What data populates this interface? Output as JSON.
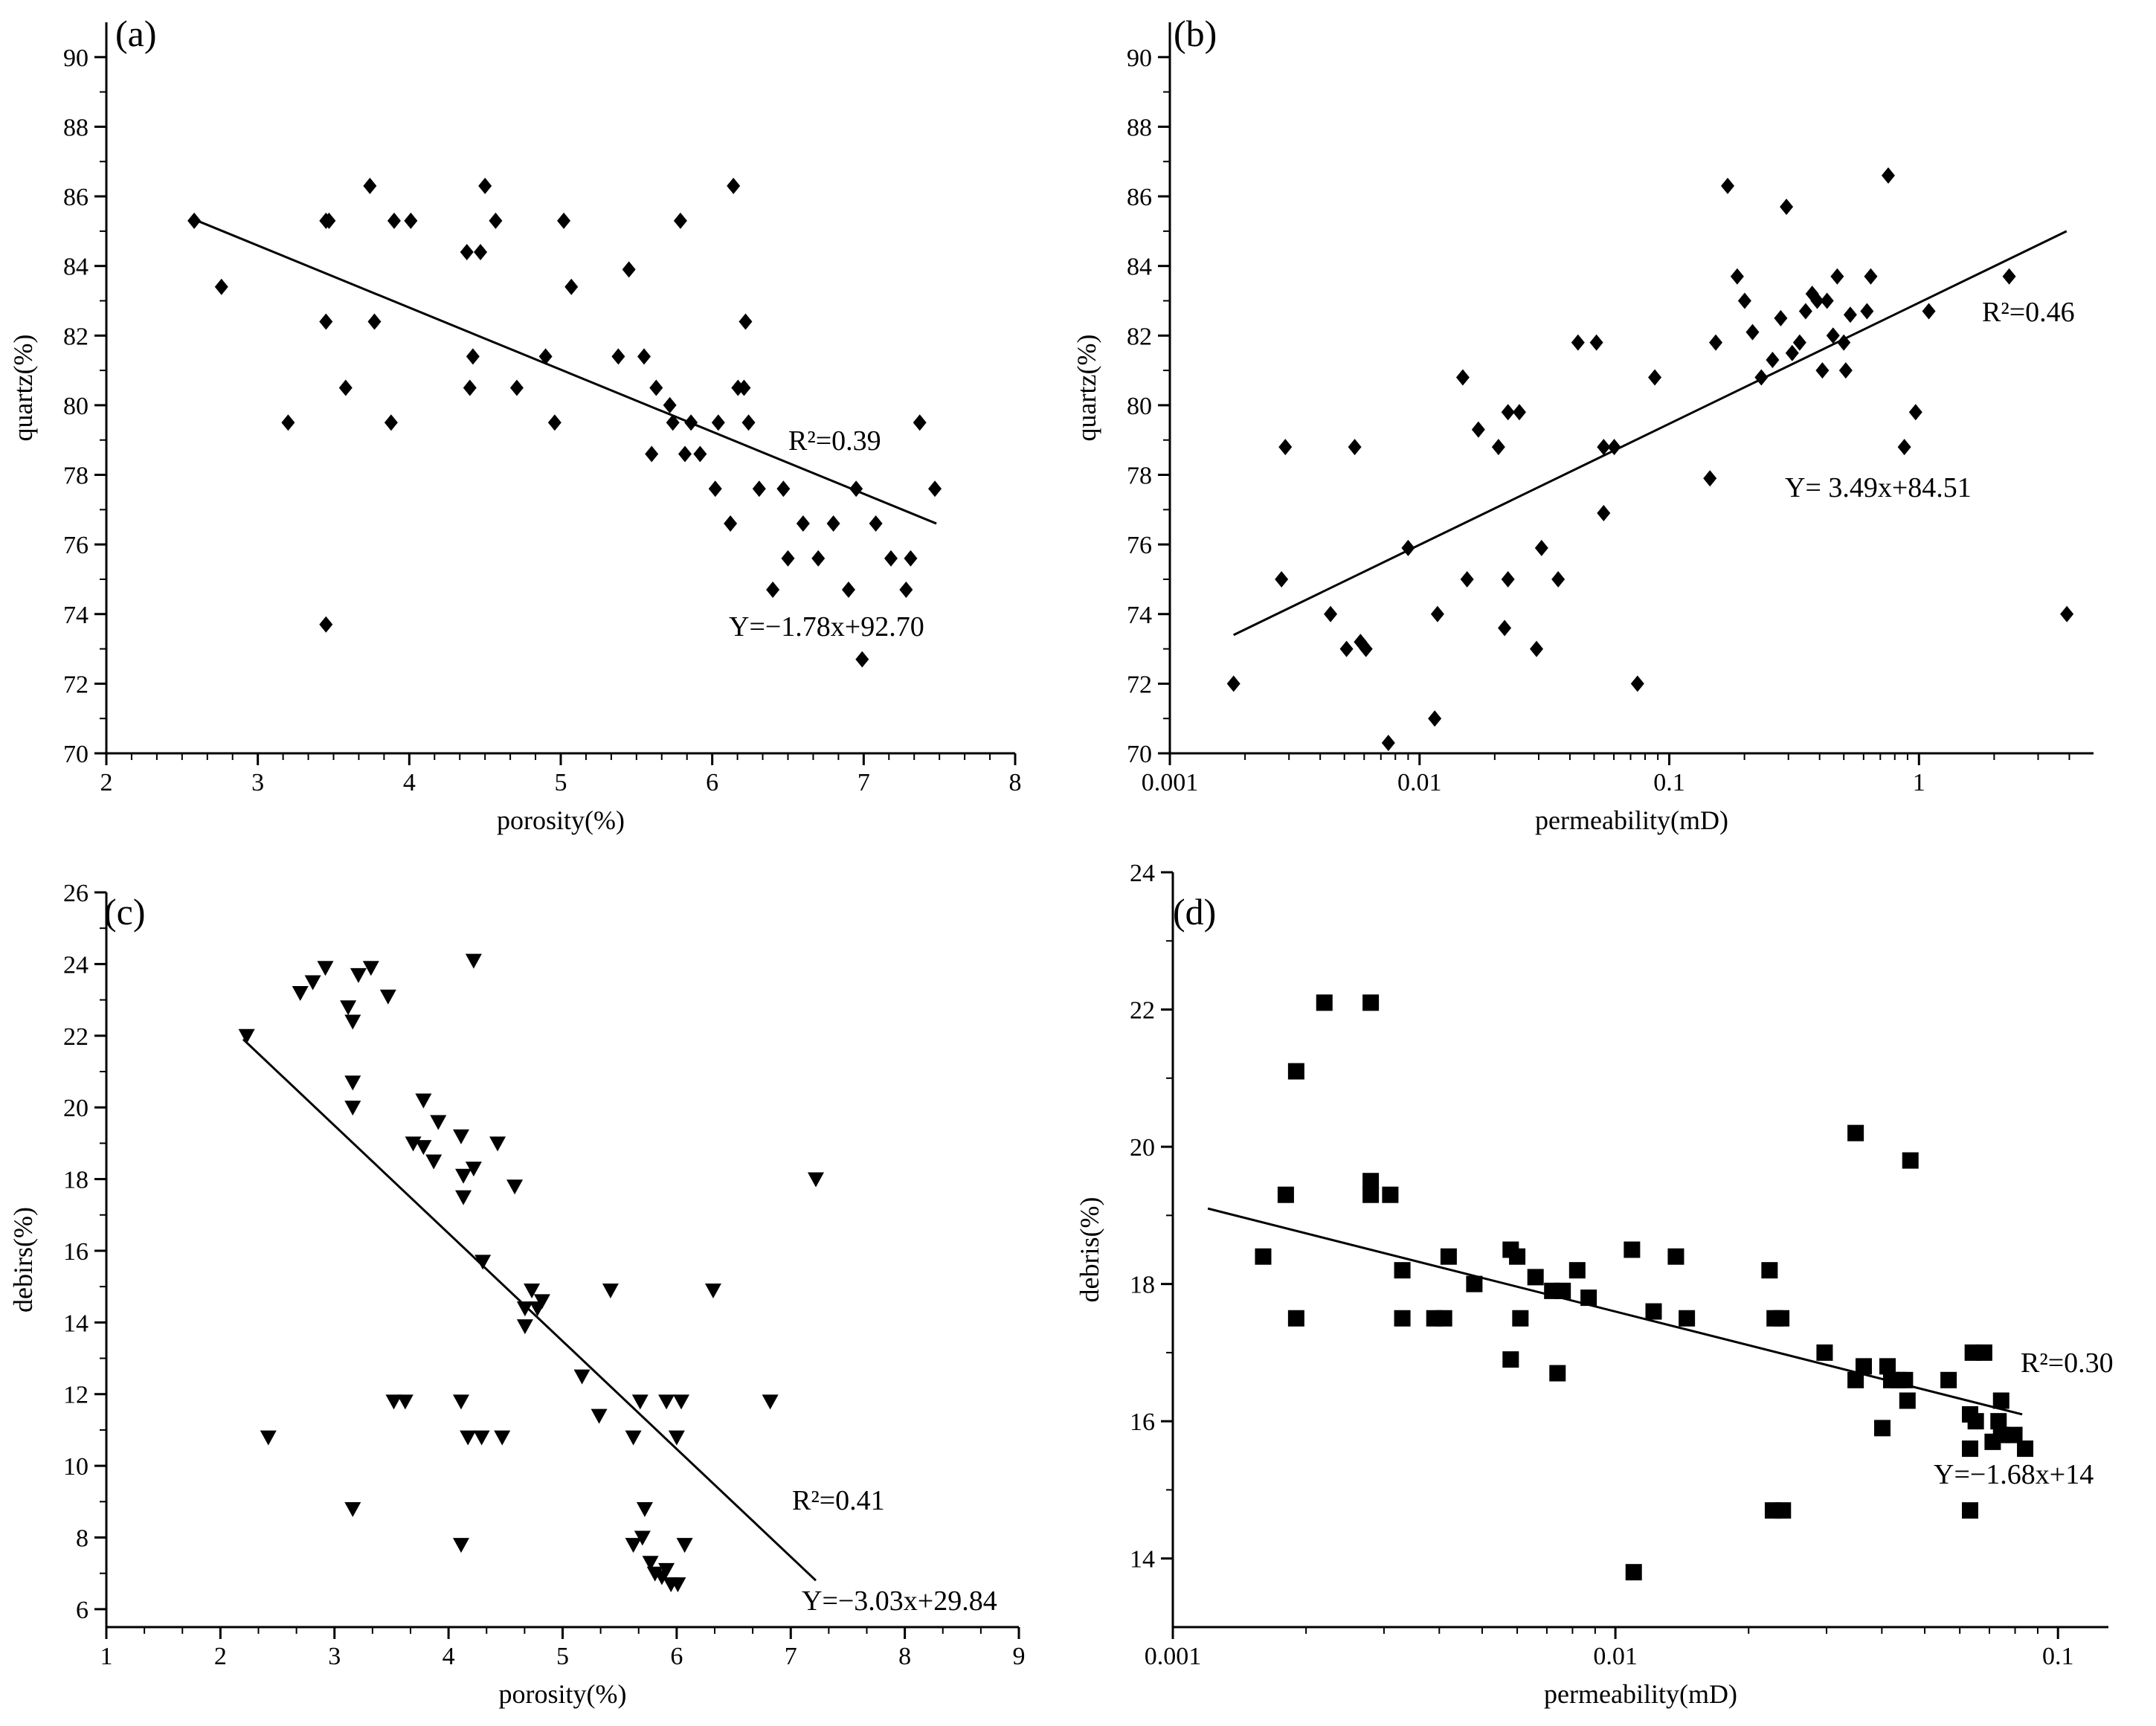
{
  "chart_data": [
    {
      "panel": "(a)",
      "type": "scatter",
      "marker": "diamond",
      "xlabel": "porosity(%)",
      "ylabel": "quartz(%)",
      "xscale": "linear",
      "xlim": [
        2,
        8
      ],
      "ylim": [
        70,
        91
      ],
      "xticks": [
        2,
        3,
        4,
        5,
        6,
        7,
        8
      ],
      "xtick_labels": [
        "2",
        "3",
        "4",
        "5",
        "6",
        "7",
        "8"
      ],
      "yticks": [
        70,
        72,
        74,
        76,
        78,
        80,
        82,
        84,
        86,
        88,
        90
      ],
      "ytick_labels": [
        "70",
        "72",
        "74",
        "76",
        "78",
        "80",
        "82",
        "84",
        "86",
        "88",
        "90"
      ],
      "r2_label": "R²=0.39",
      "equation": "Y=−1.78x+92.70",
      "fit_line": {
        "x": [
          2.6,
          7.48
        ],
        "y": [
          85.3,
          76.6
        ]
      },
      "points": [
        [
          2.58,
          85.3
        ],
        [
          2.76,
          83.4
        ],
        [
          3.2,
          79.5
        ],
        [
          3.45,
          85.3
        ],
        [
          3.47,
          85.3
        ],
        [
          3.45,
          82.4
        ],
        [
          3.45,
          73.7
        ],
        [
          3.58,
          80.5
        ],
        [
          3.74,
          86.3
        ],
        [
          3.77,
          82.4
        ],
        [
          3.88,
          79.5
        ],
        [
          3.9,
          85.3
        ],
        [
          4.01,
          85.3
        ],
        [
          4.38,
          84.4
        ],
        [
          4.4,
          80.5
        ],
        [
          4.42,
          81.4
        ],
        [
          4.47,
          84.4
        ],
        [
          4.5,
          86.3
        ],
        [
          4.57,
          85.3
        ],
        [
          4.71,
          80.5
        ],
        [
          4.9,
          81.4
        ],
        [
          4.96,
          79.5
        ],
        [
          5.02,
          85.3
        ],
        [
          5.07,
          83.4
        ],
        [
          5.38,
          81.4
        ],
        [
          5.45,
          83.9
        ],
        [
          5.55,
          81.4
        ],
        [
          5.6,
          78.6
        ],
        [
          5.63,
          80.5
        ],
        [
          5.72,
          80.0
        ],
        [
          5.74,
          79.5
        ],
        [
          5.79,
          85.3
        ],
        [
          5.82,
          78.6
        ],
        [
          5.86,
          79.5
        ],
        [
          5.92,
          78.6
        ],
        [
          6.02,
          77.6
        ],
        [
          6.04,
          79.5
        ],
        [
          6.12,
          76.6
        ],
        [
          6.14,
          86.3
        ],
        [
          6.17,
          80.5
        ],
        [
          6.21,
          80.5
        ],
        [
          6.22,
          82.4
        ],
        [
          6.24,
          79.5
        ],
        [
          6.31,
          77.6
        ],
        [
          6.4,
          74.7
        ],
        [
          6.47,
          77.6
        ],
        [
          6.5,
          75.6
        ],
        [
          6.6,
          76.6
        ],
        [
          6.7,
          75.6
        ],
        [
          6.8,
          76.6
        ],
        [
          6.9,
          74.7
        ],
        [
          6.95,
          77.6
        ],
        [
          6.99,
          72.7
        ],
        [
          7.08,
          76.6
        ],
        [
          7.18,
          75.6
        ],
        [
          7.28,
          74.7
        ],
        [
          7.31,
          75.6
        ],
        [
          7.37,
          79.5
        ],
        [
          7.47,
          77.6
        ]
      ]
    },
    {
      "panel": "(b)",
      "type": "scatter",
      "marker": "diamond",
      "xlabel": "permeability(mD)",
      "ylabel": "quartz(%)",
      "xscale": "log",
      "xlim": [
        0.001,
        5.0
      ],
      "ylim": [
        70,
        91
      ],
      "xticks": [
        0.001,
        0.01,
        0.1,
        1
      ],
      "xtick_labels": [
        "0.001",
        "0.01",
        "0.1",
        "1"
      ],
      "yticks": [
        70,
        72,
        74,
        76,
        78,
        80,
        82,
        84,
        86,
        88,
        90
      ],
      "ytick_labels": [
        "70",
        "72",
        "74",
        "76",
        "78",
        "80",
        "82",
        "84",
        "86",
        "88",
        "90"
      ],
      "r2_label": "R²=0.46",
      "equation": "Y= 3.49x+84.51",
      "fit_line": {
        "x": [
          0.0018,
          3.9
        ],
        "y": [
          73.4,
          85.0
        ]
      },
      "points": [
        [
          0.0018,
          72.0
        ],
        [
          0.0028,
          75.0
        ],
        [
          0.0029,
          78.8
        ],
        [
          0.0044,
          74.0
        ],
        [
          0.0051,
          73.0
        ],
        [
          0.0055,
          78.8
        ],
        [
          0.0058,
          73.2
        ],
        [
          0.0061,
          73.0
        ],
        [
          0.0075,
          70.3
        ],
        [
          0.009,
          75.9
        ],
        [
          0.0115,
          71.0
        ],
        [
          0.0118,
          74.0
        ],
        [
          0.0149,
          80.8
        ],
        [
          0.0155,
          75.0
        ],
        [
          0.0172,
          79.3
        ],
        [
          0.0207,
          78.8
        ],
        [
          0.0219,
          73.6
        ],
        [
          0.0226,
          79.8
        ],
        [
          0.0226,
          75.0
        ],
        [
          0.0251,
          79.8
        ],
        [
          0.0294,
          73.0
        ],
        [
          0.0308,
          75.9
        ],
        [
          0.0359,
          75.0
        ],
        [
          0.0431,
          81.8
        ],
        [
          0.0511,
          81.8
        ],
        [
          0.0546,
          76.9
        ],
        [
          0.0546,
          78.8
        ],
        [
          0.0602,
          78.8
        ],
        [
          0.0746,
          72.0
        ],
        [
          0.0875,
          80.8
        ],
        [
          0.1455,
          77.9
        ],
        [
          0.1535,
          81.8
        ],
        [
          0.1713,
          86.3
        ],
        [
          0.1871,
          83.7
        ],
        [
          0.2004,
          83.0
        ],
        [
          0.2155,
          82.1
        ],
        [
          0.2337,
          80.8
        ],
        [
          0.2592,
          81.3
        ],
        [
          0.2795,
          82.5
        ],
        [
          0.2946,
          85.7
        ],
        [
          0.3106,
          81.5
        ],
        [
          0.3328,
          81.8
        ],
        [
          0.3516,
          82.7
        ],
        [
          0.3735,
          83.2
        ],
        [
          0.3913,
          83.0
        ],
        [
          0.4103,
          81.0
        ],
        [
          0.4284,
          83.0
        ],
        [
          0.4528,
          82.0
        ],
        [
          0.4706,
          83.7
        ],
        [
          0.4999,
          81.8
        ],
        [
          0.5091,
          81.0
        ],
        [
          0.5307,
          82.6
        ],
        [
          0.6191,
          82.7
        ],
        [
          0.6411,
          83.7
        ],
        [
          0.7531,
          86.6
        ],
        [
          0.8738,
          78.8
        ],
        [
          0.9695,
          79.8
        ],
        [
          1.0953,
          82.7
        ],
        [
          2.2969,
          83.7
        ],
        [
          3.9102,
          74.0
        ]
      ]
    },
    {
      "panel": "(c)",
      "type": "scatter",
      "marker": "triangle-down",
      "xlabel": "porosity(%)",
      "ylabel": "debirs(%)",
      "xscale": "linear",
      "xlim": [
        1,
        9
      ],
      "ylim": [
        5.5,
        26
      ],
      "xticks": [
        1,
        2,
        3,
        4,
        5,
        6,
        7,
        8,
        9
      ],
      "xtick_labels": [
        "1",
        "2",
        "3",
        "4",
        "5",
        "6",
        "7",
        "8",
        "9"
      ],
      "yticks": [
        6,
        8,
        10,
        12,
        14,
        16,
        18,
        20,
        22,
        24,
        26
      ],
      "ytick_labels": [
        "6",
        "8",
        "10",
        "12",
        "14",
        "16",
        "18",
        "20",
        "22",
        "24",
        "26"
      ],
      "r2_label": "R²=0.41",
      "equation": "Y=−3.03x+29.84",
      "fit_line": {
        "x": [
          2.2,
          7.22
        ],
        "y": [
          21.9,
          6.8
        ]
      },
      "points": [
        [
          2.23,
          22.0
        ],
        [
          2.42,
          10.8
        ],
        [
          2.7,
          23.2
        ],
        [
          2.81,
          23.5
        ],
        [
          2.92,
          23.9
        ],
        [
          3.12,
          22.8
        ],
        [
          3.16,
          22.4
        ],
        [
          3.16,
          20.7
        ],
        [
          3.16,
          20.0
        ],
        [
          3.16,
          8.8
        ],
        [
          3.21,
          23.7
        ],
        [
          3.32,
          23.9
        ],
        [
          3.47,
          23.1
        ],
        [
          3.52,
          11.8
        ],
        [
          3.62,
          11.8
        ],
        [
          3.69,
          19.0
        ],
        [
          3.78,
          20.2
        ],
        [
          3.78,
          18.9
        ],
        [
          3.87,
          18.5
        ],
        [
          3.91,
          19.6
        ],
        [
          4.11,
          19.2
        ],
        [
          4.13,
          18.1
        ],
        [
          4.13,
          17.5
        ],
        [
          4.11,
          11.8
        ],
        [
          4.11,
          7.8
        ],
        [
          4.17,
          10.8
        ],
        [
          4.22,
          24.1
        ],
        [
          4.22,
          18.3
        ],
        [
          4.29,
          10.8
        ],
        [
          4.3,
          15.7
        ],
        [
          4.43,
          19.0
        ],
        [
          4.47,
          10.8
        ],
        [
          4.58,
          17.8
        ],
        [
          4.67,
          14.4
        ],
        [
          4.67,
          13.9
        ],
        [
          4.73,
          14.9
        ],
        [
          4.78,
          14.4
        ],
        [
          4.82,
          14.6
        ],
        [
          5.17,
          12.5
        ],
        [
          5.32,
          11.4
        ],
        [
          5.42,
          14.9
        ],
        [
          5.62,
          10.8
        ],
        [
          5.62,
          7.8
        ],
        [
          5.68,
          11.8
        ],
        [
          5.72,
          8.8
        ],
        [
          5.7,
          8.0
        ],
        [
          5.77,
          7.3
        ],
        [
          5.81,
          7.0
        ],
        [
          5.87,
          6.9
        ],
        [
          5.91,
          11.8
        ],
        [
          5.91,
          7.1
        ],
        [
          5.95,
          6.7
        ],
        [
          6.01,
          6.7
        ],
        [
          6.0,
          10.8
        ],
        [
          6.04,
          11.8
        ],
        [
          6.07,
          7.8
        ],
        [
          6.32,
          14.9
        ],
        [
          6.82,
          11.8
        ],
        [
          7.22,
          18.0
        ]
      ]
    },
    {
      "panel": "(d)",
      "type": "scatter",
      "marker": "square",
      "xlabel": "permeability(mD)",
      "ylabel": "debris(%)",
      "xscale": "log",
      "xlim": [
        0.001,
        0.13
      ],
      "ylim": [
        13,
        24
      ],
      "xticks": [
        0.001,
        0.01,
        0.1
      ],
      "xtick_labels": [
        "0.001",
        "0.01",
        "0.1"
      ],
      "yticks": [
        14,
        16,
        18,
        20,
        22,
        24
      ],
      "ytick_labels": [
        "14",
        "16",
        "18",
        "20",
        "22",
        "24"
      ],
      "r2_label": "R²=0.30",
      "equation": "Y=−1.68x+14",
      "fit_line": {
        "x": [
          0.0012,
          0.083
        ],
        "y": [
          19.1,
          16.1
        ]
      },
      "points": [
        [
          0.0016,
          18.4
        ],
        [
          0.0018,
          19.3
        ],
        [
          0.0019,
          17.5
        ],
        [
          0.0019,
          21.1
        ],
        [
          0.0022,
          22.1
        ],
        [
          0.0028,
          22.1
        ],
        [
          0.0028,
          19.5
        ],
        [
          0.0028,
          19.3
        ],
        [
          0.0031,
          19.3
        ],
        [
          0.0033,
          18.2
        ],
        [
          0.0033,
          17.5
        ],
        [
          0.0039,
          17.5
        ],
        [
          0.0041,
          17.5
        ],
        [
          0.0042,
          18.4
        ],
        [
          0.0048,
          18.0
        ],
        [
          0.0058,
          18.5
        ],
        [
          0.0058,
          16.9
        ],
        [
          0.006,
          18.4
        ],
        [
          0.0061,
          17.5
        ],
        [
          0.0066,
          18.1
        ],
        [
          0.0072,
          17.9
        ],
        [
          0.0074,
          16.7
        ],
        [
          0.0076,
          17.9
        ],
        [
          0.0082,
          18.2
        ],
        [
          0.0087,
          17.8
        ],
        [
          0.0109,
          18.5
        ],
        [
          0.011,
          13.8
        ],
        [
          0.0122,
          17.6
        ],
        [
          0.0137,
          18.4
        ],
        [
          0.0145,
          17.5
        ],
        [
          0.0223,
          18.2
        ],
        [
          0.0227,
          14.7
        ],
        [
          0.0229,
          17.5
        ],
        [
          0.0237,
          17.5
        ],
        [
          0.0239,
          14.7
        ],
        [
          0.0297,
          17.0
        ],
        [
          0.0349,
          20.2
        ],
        [
          0.0349,
          16.6
        ],
        [
          0.0364,
          16.8
        ],
        [
          0.0401,
          15.9
        ],
        [
          0.0412,
          16.8
        ],
        [
          0.042,
          16.6
        ],
        [
          0.0435,
          16.6
        ],
        [
          0.0451,
          16.6
        ],
        [
          0.0457,
          16.3
        ],
        [
          0.0464,
          19.8
        ],
        [
          0.0566,
          16.6
        ],
        [
          0.0633,
          16.1
        ],
        [
          0.0633,
          15.6
        ],
        [
          0.0633,
          14.7
        ],
        [
          0.0642,
          17.0
        ],
        [
          0.0652,
          16.0
        ],
        [
          0.0681,
          17.0
        ],
        [
          0.0712,
          15.7
        ],
        [
          0.0734,
          16.0
        ],
        [
          0.0744,
          16.3
        ],
        [
          0.0744,
          15.8
        ],
        [
          0.0797,
          15.8
        ],
        [
          0.0843,
          15.6
        ]
      ]
    }
  ]
}
